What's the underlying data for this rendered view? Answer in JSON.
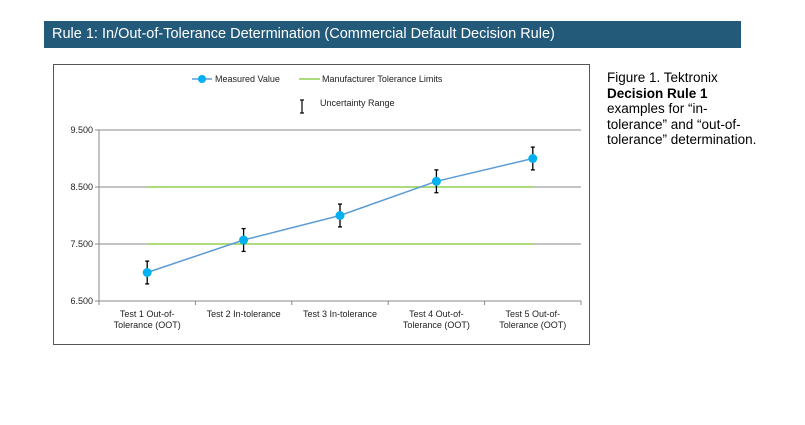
{
  "header": {
    "title": "Rule 1: In/Out-of-Tolerance Determination (Commercial Default Decision Rule)"
  },
  "caption": {
    "prefix": "Figure 1. Tektronix ",
    "bold": "Decision Rule 1",
    "suffix": " examples for “in-tolerance” and “out-of-tolerance” determination."
  },
  "chart_data": {
    "type": "line",
    "categories": [
      [
        "Test 1 Out-of-",
        "Tolerance (OOT)"
      ],
      [
        "Test 2 In-tolerance"
      ],
      [
        "Test 3 In-tolerance"
      ],
      [
        "Test 4 Out-of-",
        "Tolerance (OOT)"
      ],
      [
        "Test 5 Out-of-",
        "Tolerance (OOT)"
      ]
    ],
    "series": [
      {
        "name": "Measured Value",
        "values": [
          7.0,
          7.57,
          8.0,
          8.6,
          9.0
        ],
        "error": 0.2,
        "color": "#5b9bd5",
        "marker_color": "#00b0f0"
      }
    ],
    "tolerance": {
      "name": "Manufacturer Tolerance Limits",
      "lower": 7.5,
      "upper": 8.5,
      "color": "#92d050"
    },
    "error_legend": "Uncertainty Range",
    "yticks": [
      "6.500",
      "7.500",
      "8.500",
      "9.500"
    ],
    "ylim": [
      6.5,
      9.5
    ],
    "grid": true,
    "legend": "top"
  }
}
